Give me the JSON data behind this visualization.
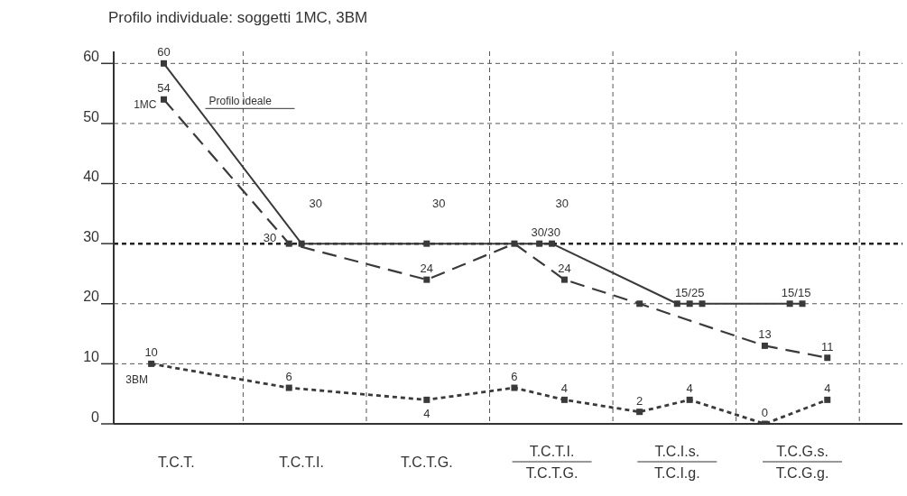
{
  "chart_data": {
    "type": "line",
    "title": "Profilo individuale: soggetti 1MC, 3BM",
    "categories": [
      null,
      null,
      null,
      null,
      null,
      "T.C.T.",
      null,
      null,
      null,
      null,
      null,
      null,
      null,
      null,
      null,
      "T.C.T.I.",
      null,
      null,
      null,
      null,
      null,
      null,
      null,
      null,
      null,
      "T.C.T.G.",
      null,
      null,
      null,
      null,
      null,
      null,
      null,
      null,
      null,
      "T.C.T.I.\nT.C.T.G.",
      null,
      null,
      null,
      null,
      null,
      null,
      null,
      null,
      null,
      "T.C.I.s.\nT.C.I.g.",
      null,
      null,
      null,
      null,
      null,
      null,
      null,
      null,
      null,
      "T.C.G.s.\nT.C.G.g.",
      null,
      null,
      null,
      null,
      null,
      null,
      null,
      null
    ],
    "ylim": [
      0,
      62
    ],
    "yticks": [
      0,
      10,
      20,
      30,
      40,
      50,
      60
    ],
    "grid": true,
    "marker": "square",
    "series": [
      {
        "name": "Profilo ideale",
        "color": "#3a3a3a",
        "line_style": "solid",
        "values": [
          null,
          null,
          null,
          null,
          60,
          null,
          null,
          null,
          null,
          null,
          null,
          null,
          null,
          null,
          null,
          30,
          null,
          null,
          null,
          null,
          null,
          null,
          null,
          null,
          null,
          30,
          null,
          null,
          null,
          null,
          null,
          null,
          null,
          null,
          30,
          30,
          null,
          null,
          null,
          null,
          null,
          null,
          null,
          null,
          null,
          20,
          20,
          20,
          null,
          null,
          null,
          null,
          null,
          null,
          20,
          20,
          null,
          null,
          null,
          null,
          null,
          null,
          null,
          null
        ],
        "value_labels": [
          null,
          null,
          null,
          null,
          "60",
          null,
          null,
          null,
          null,
          null,
          null,
          null,
          null,
          null,
          null,
          null,
          null,
          null,
          null,
          null,
          null,
          null,
          null,
          null,
          null,
          null,
          null,
          null,
          null,
          null,
          null,
          null,
          null,
          null,
          "30/30",
          null,
          null,
          null,
          null,
          null,
          null,
          null,
          null,
          null,
          null,
          null,
          "15/25",
          null,
          null,
          null,
          null,
          null,
          null,
          null,
          "15/15",
          null,
          null,
          null,
          null,
          null,
          null,
          null,
          null,
          null
        ]
      },
      {
        "name": "1MC",
        "color": "#3a3a3a",
        "line_style": "dashed",
        "values": [
          null,
          null,
          null,
          null,
          54,
          null,
          null,
          null,
          null,
          null,
          null,
          null,
          null,
          null,
          30,
          null,
          null,
          null,
          null,
          null,
          null,
          null,
          null,
          null,
          null,
          24,
          null,
          null,
          null,
          null,
          null,
          null,
          30,
          null,
          null,
          null,
          24,
          null,
          null,
          null,
          null,
          null,
          20,
          null,
          null,
          null,
          null,
          null,
          null,
          null,
          null,
          null,
          13,
          null,
          null,
          null,
          null,
          11,
          null,
          null,
          null,
          null,
          null,
          null
        ],
        "value_labels": [
          null,
          null,
          null,
          null,
          "54",
          null,
          null,
          null,
          null,
          null,
          null,
          null,
          null,
          null,
          "30",
          null,
          null,
          null,
          null,
          null,
          null,
          null,
          null,
          null,
          null,
          "24",
          null,
          null,
          null,
          null,
          null,
          null,
          null,
          null,
          null,
          null,
          "24",
          null,
          null,
          null,
          null,
          null,
          null,
          null,
          null,
          null,
          null,
          null,
          null,
          null,
          null,
          null,
          "13",
          null,
          null,
          null,
          null,
          "11",
          null,
          null,
          null,
          null,
          null,
          null
        ]
      },
      {
        "name": "3BM",
        "color": "#3a3a3a",
        "line_style": "dotted",
        "values": [
          null,
          null,
          null,
          10,
          null,
          null,
          null,
          null,
          null,
          null,
          null,
          null,
          null,
          null,
          6,
          null,
          null,
          null,
          null,
          null,
          null,
          null,
          null,
          null,
          null,
          4,
          null,
          null,
          null,
          null,
          null,
          null,
          6,
          null,
          null,
          null,
          4,
          null,
          null,
          null,
          null,
          null,
          2,
          null,
          null,
          null,
          4,
          null,
          null,
          null,
          null,
          null,
          0,
          null,
          null,
          null,
          null,
          4,
          null,
          null,
          null,
          null,
          null,
          null
        ],
        "value_labels": [
          null,
          null,
          null,
          "10",
          null,
          null,
          null,
          null,
          null,
          null,
          null,
          null,
          null,
          null,
          "6",
          null,
          null,
          null,
          null,
          null,
          null,
          null,
          null,
          null,
          null,
          "4",
          null,
          null,
          null,
          null,
          null,
          null,
          "6",
          null,
          null,
          null,
          "4",
          null,
          null,
          null,
          null,
          null,
          "2",
          null,
          null,
          null,
          "4",
          null,
          null,
          null,
          null,
          null,
          "0",
          null,
          null,
          null,
          null,
          "4",
          null,
          null,
          null,
          null,
          null,
          null
        ]
      }
    ],
    "ref_lines": [
      {
        "axis": "y",
        "value": 30,
        "line_style": "dotted",
        "color": "#222222"
      }
    ],
    "annotations": [
      "30",
      "30",
      "30"
    ]
  }
}
